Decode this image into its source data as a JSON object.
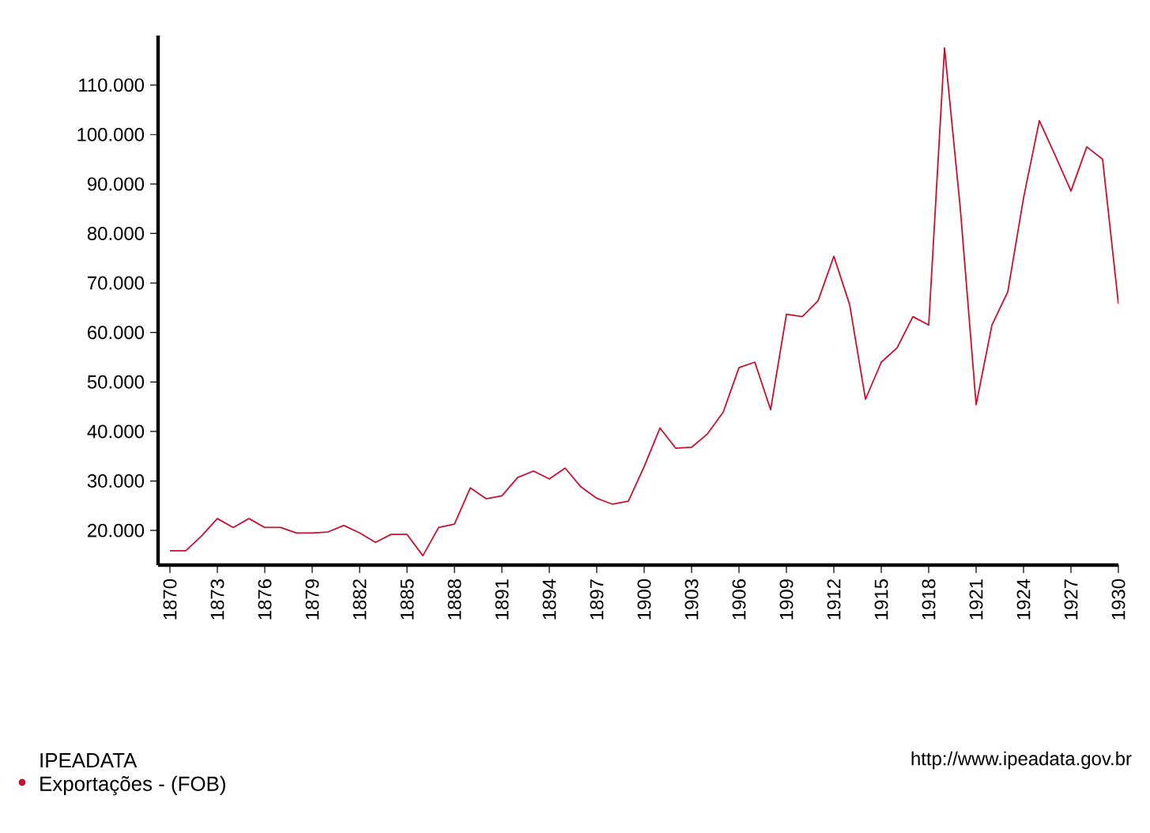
{
  "chart_data": {
    "type": "line",
    "x": [
      1870,
      1871,
      1872,
      1873,
      1874,
      1875,
      1876,
      1877,
      1878,
      1879,
      1880,
      1881,
      1882,
      1883,
      1884,
      1885,
      1886,
      1887,
      1888,
      1889,
      1890,
      1891,
      1892,
      1893,
      1894,
      1895,
      1896,
      1897,
      1898,
      1899,
      1900,
      1901,
      1902,
      1903,
      1904,
      1905,
      1906,
      1907,
      1908,
      1909,
      1910,
      1911,
      1912,
      1913,
      1914,
      1915,
      1916,
      1917,
      1918,
      1919,
      1920,
      1921,
      1922,
      1923,
      1924,
      1925,
      1926,
      1927,
      1928,
      1929,
      1930
    ],
    "series": [
      {
        "name": "Exportações - (FOB)",
        "color": "#c8102e",
        "values": [
          15900,
          15900,
          18900,
          22400,
          20600,
          22400,
          20600,
          20600,
          19500,
          19500,
          19700,
          21000,
          19500,
          17600,
          19200,
          19200,
          14900,
          20600,
          21300,
          28600,
          26400,
          27000,
          30700,
          32000,
          30400,
          32600,
          28800,
          26500,
          25300,
          25900,
          32900,
          40700,
          36600,
          36800,
          39500,
          43900,
          52900,
          54000,
          44400,
          63700,
          63200,
          66400,
          75400,
          65600,
          46500,
          54000,
          56900,
          63200,
          61500,
          117500,
          85000,
          45400,
          61500,
          68200,
          87200,
          102800,
          95800,
          88600,
          97500,
          95000,
          65800
        ]
      }
    ],
    "xlim": [
      1869.25,
      1930
    ],
    "ylim": [
      13000,
      120000
    ],
    "xticks": [
      1870,
      1873,
      1876,
      1879,
      1882,
      1885,
      1888,
      1891,
      1894,
      1897,
      1900,
      1903,
      1906,
      1909,
      1912,
      1915,
      1918,
      1921,
      1924,
      1927,
      1930
    ],
    "yticks": [
      {
        "value": 20000,
        "label": "20.000"
      },
      {
        "value": 30000,
        "label": "30.000"
      },
      {
        "value": 40000,
        "label": "40.000"
      },
      {
        "value": 50000,
        "label": "50.000"
      },
      {
        "value": 60000,
        "label": "60.000"
      },
      {
        "value": 70000,
        "label": "70.000"
      },
      {
        "value": 80000,
        "label": "80.000"
      },
      {
        "value": 90000,
        "label": "90.000"
      },
      {
        "value": 100000,
        "label": "100.000"
      },
      {
        "value": 110000,
        "label": "110.000"
      }
    ],
    "legend": "bottom left",
    "legend_title": "IPEADATA",
    "grid": false,
    "marker": "none",
    "line_style": "solid",
    "annotations": [
      "http://www.ipeadata.gov.br"
    ]
  }
}
